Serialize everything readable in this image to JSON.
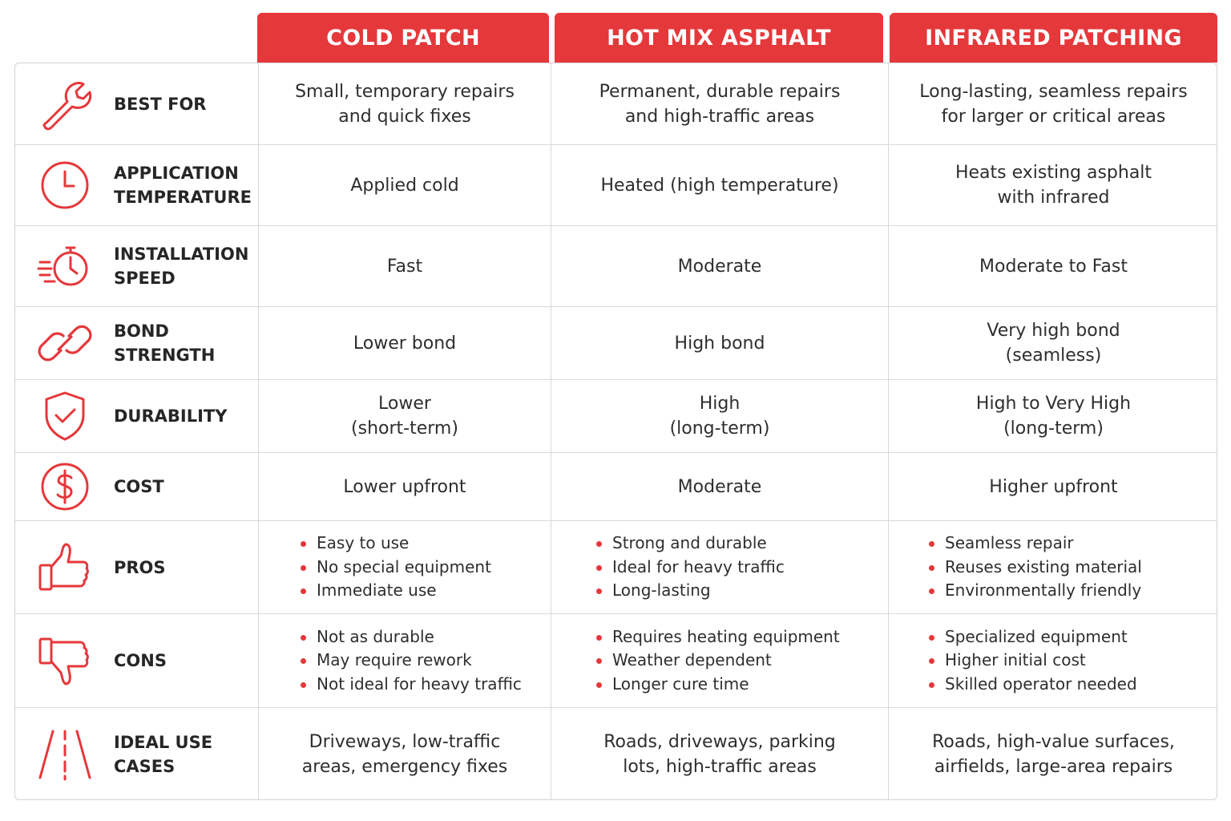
{
  "accent_color": "#e5383b",
  "columns": [
    "COLD PATCH",
    "HOT MIX ASPHALT",
    "INFRARED PATCHING"
  ],
  "rows": [
    {
      "label": "BEST FOR",
      "icon": "wrench-icon",
      "cells": [
        "Small, temporary repairs\nand quick fixes",
        "Permanent, durable repairs\nand high-traffic areas",
        "Long-lasting, seamless repairs\nfor larger or critical areas"
      ]
    },
    {
      "label": "APPLICATION\nTEMPERATURE",
      "icon": "clock-icon",
      "cells": [
        "Applied cold",
        "Heated (high temperature)",
        "Heats existing asphalt\nwith infrared"
      ]
    },
    {
      "label": "INSTALLATION\nSPEED",
      "icon": "stopwatch-icon",
      "cells": [
        "Fast",
        "Moderate",
        "Moderate to Fast"
      ]
    },
    {
      "label": "BOND STRENGTH",
      "icon": "link-icon",
      "cells": [
        "Lower bond",
        "High bond",
        "Very high bond\n(seamless)"
      ]
    },
    {
      "label": "DURABILITY",
      "icon": "shield-check-icon",
      "cells": [
        "Lower\n(short-term)",
        "High\n(long-term)",
        "High to Very High\n(long-term)"
      ]
    },
    {
      "label": "COST",
      "icon": "dollar-icon",
      "cells": [
        "Lower upfront",
        "Moderate",
        "Higher upfront"
      ]
    },
    {
      "label": "PROS",
      "icon": "thumbs-up-icon",
      "lists": [
        [
          "Easy to use",
          "No special equipment",
          "Immediate use"
        ],
        [
          "Strong and durable",
          "Ideal for heavy traffic",
          "Long-lasting"
        ],
        [
          "Seamless repair",
          "Reuses existing material",
          "Environmentally friendly"
        ]
      ]
    },
    {
      "label": "CONS",
      "icon": "thumbs-down-icon",
      "lists": [
        [
          "Not as durable",
          "May require rework",
          "Not ideal for heavy traffic"
        ],
        [
          "Requires heating equipment",
          "Weather dependent",
          "Longer cure time"
        ],
        [
          "Specialized equipment",
          "Higher initial cost",
          "Skilled operator needed"
        ]
      ]
    },
    {
      "label": "IDEAL USE\nCASES",
      "icon": "road-icon",
      "cells": [
        "Driveways, low-traffic\nareas, emergency fixes",
        "Roads, driveways, parking\nlots, high-traffic areas",
        "Roads, high-value surfaces,\nairfields, large-area repairs"
      ]
    }
  ]
}
